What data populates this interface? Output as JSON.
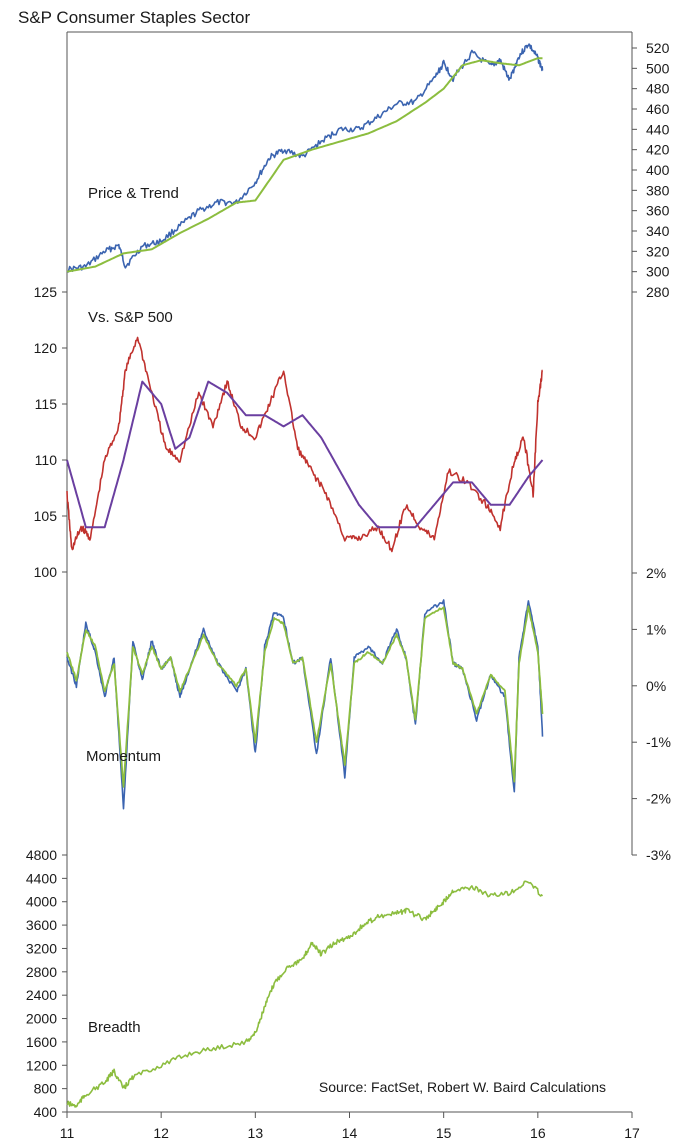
{
  "figure": {
    "title": "S&P Consumer Staples Sector",
    "source": "Source: FactSet, Robert W. Baird Calculations"
  },
  "chart_data": [
    {
      "type": "line",
      "panel": "price",
      "label": "Price & Trend",
      "y_axis_side": "right",
      "ylim": [
        280,
        530
      ],
      "yticks": [
        280,
        300,
        320,
        340,
        360,
        380,
        400,
        420,
        440,
        460,
        480,
        500,
        520
      ],
      "series": [
        {
          "role": "price",
          "color": "#3b64b0",
          "x": [
            11.0,
            11.2,
            11.4,
            11.55,
            11.62,
            11.8,
            12.0,
            12.2,
            12.4,
            12.6,
            12.8,
            13.0,
            13.15,
            13.3,
            13.5,
            13.7,
            13.9,
            14.1,
            14.3,
            14.5,
            14.7,
            14.9,
            15.0,
            15.1,
            15.3,
            15.5,
            15.6,
            15.7,
            15.8,
            15.9,
            16.0,
            16.05
          ],
          "y": [
            302,
            305,
            320,
            326,
            305,
            325,
            330,
            345,
            360,
            368,
            368,
            388,
            412,
            420,
            413,
            428,
            440,
            440,
            452,
            465,
            467,
            490,
            505,
            490,
            515,
            502,
            508,
            488,
            512,
            524,
            510,
            498
          ]
        },
        {
          "role": "trend",
          "color": "#8cbd3f",
          "x": [
            11.0,
            11.3,
            11.6,
            11.9,
            12.2,
            12.5,
            12.8,
            13.0,
            13.3,
            13.6,
            13.9,
            14.2,
            14.5,
            14.8,
            15.0,
            15.2,
            15.4,
            15.6,
            15.8,
            16.0,
            16.05
          ],
          "y": [
            300,
            305,
            318,
            322,
            338,
            352,
            368,
            370,
            410,
            420,
            428,
            436,
            448,
            466,
            480,
            503,
            508,
            505,
            503,
            510,
            510
          ]
        }
      ]
    },
    {
      "type": "line",
      "panel": "relative",
      "label": "Vs. S&P 500",
      "y_axis_side": "left",
      "ylim": [
        100,
        126
      ],
      "yticks": [
        100,
        105,
        110,
        115,
        120,
        125
      ],
      "series": [
        {
          "role": "relative",
          "color": "#c0322e",
          "x": [
            11.0,
            11.05,
            11.15,
            11.25,
            11.4,
            11.55,
            11.62,
            11.75,
            11.9,
            12.05,
            12.2,
            12.4,
            12.55,
            12.7,
            12.85,
            13.0,
            13.15,
            13.3,
            13.45,
            13.6,
            13.75,
            13.95,
            14.1,
            14.3,
            14.45,
            14.6,
            14.75,
            14.9,
            15.05,
            15.25,
            15.45,
            15.6,
            15.75,
            15.85,
            15.95,
            16.0,
            16.05
          ],
          "y": [
            107,
            102,
            104,
            103,
            110,
            113,
            118,
            121,
            116,
            111,
            110,
            116,
            113,
            117,
            113,
            112,
            115,
            118,
            111,
            109,
            107,
            103,
            103,
            104,
            102,
            106,
            104,
            103,
            109,
            108,
            106,
            104,
            110,
            112,
            107,
            115,
            118
          ]
        },
        {
          "role": "average",
          "color": "#6a3fa0",
          "x": [
            11.0,
            11.2,
            11.4,
            11.6,
            11.8,
            12.0,
            12.15,
            12.3,
            12.5,
            12.7,
            12.9,
            13.1,
            13.3,
            13.5,
            13.7,
            13.9,
            14.1,
            14.3,
            14.5,
            14.7,
            14.9,
            15.1,
            15.3,
            15.5,
            15.7,
            15.9,
            16.05
          ],
          "y": [
            110,
            104,
            104,
            110,
            117,
            115,
            111,
            112,
            117,
            116,
            114,
            114,
            113,
            114,
            112,
            109,
            106,
            104,
            104,
            104,
            106,
            108,
            108,
            106,
            106,
            108.5,
            110
          ]
        }
      ]
    },
    {
      "type": "line",
      "panel": "momentum",
      "label": "Momentum",
      "y_axis_side": "right",
      "ylim": [
        -3,
        2
      ],
      "yticks": [
        -3,
        -2,
        -1,
        0,
        1,
        2
      ],
      "tick_suffix": "%",
      "series": [
        {
          "role": "momentum",
          "color": "#3b64b0",
          "x": [
            11.0,
            11.1,
            11.2,
            11.3,
            11.4,
            11.5,
            11.6,
            11.7,
            11.8,
            11.9,
            12.0,
            12.1,
            12.2,
            12.3,
            12.45,
            12.6,
            12.8,
            12.9,
            13.0,
            13.1,
            13.2,
            13.3,
            13.4,
            13.5,
            13.65,
            13.8,
            13.95,
            14.05,
            14.2,
            14.35,
            14.5,
            14.6,
            14.7,
            14.8,
            15.0,
            15.1,
            15.2,
            15.35,
            15.5,
            15.65,
            15.75,
            15.8,
            15.9,
            16.0,
            16.05
          ],
          "y": [
            0.5,
            0,
            1.1,
            0.6,
            -0.2,
            0.5,
            -2.2,
            0.8,
            0.1,
            0.8,
            0.3,
            0.5,
            -0.2,
            0.3,
            1.0,
            0.4,
            -0.1,
            0.3,
            -1.2,
            0.7,
            1.3,
            1.2,
            0.4,
            0.5,
            -1.2,
            0.5,
            -1.6,
            0.5,
            0.7,
            0.4,
            1.0,
            0.5,
            -0.7,
            1.3,
            1.5,
            0.4,
            0.3,
            -0.6,
            0.2,
            -0.2,
            -1.9,
            0.5,
            1.5,
            0.7,
            -0.9
          ]
        },
        {
          "role": "momentum-smoothed",
          "color": "#8cbd3f",
          "x": [
            11.0,
            11.1,
            11.2,
            11.3,
            11.4,
            11.5,
            11.6,
            11.7,
            11.8,
            11.9,
            12.0,
            12.1,
            12.2,
            12.3,
            12.45,
            12.6,
            12.8,
            12.9,
            13.0,
            13.1,
            13.2,
            13.3,
            13.4,
            13.5,
            13.65,
            13.8,
            13.95,
            14.05,
            14.2,
            14.35,
            14.5,
            14.6,
            14.7,
            14.8,
            15.0,
            15.1,
            15.2,
            15.35,
            15.5,
            15.65,
            15.75,
            15.8,
            15.9,
            16.0,
            16.05
          ],
          "y": [
            0.6,
            0.1,
            1.0,
            0.7,
            -0.1,
            0.4,
            -1.8,
            0.7,
            0.2,
            0.7,
            0.3,
            0.5,
            -0.1,
            0.3,
            0.9,
            0.4,
            0,
            0.3,
            -1.0,
            0.6,
            1.2,
            1.1,
            0.4,
            0.5,
            -1.0,
            0.4,
            -1.4,
            0.4,
            0.6,
            0.4,
            0.9,
            0.5,
            -0.6,
            1.2,
            1.4,
            0.4,
            0.3,
            -0.5,
            0.2,
            -0.1,
            -1.7,
            0.4,
            1.4,
            0.6,
            -0.5
          ]
        }
      ]
    },
    {
      "type": "line",
      "panel": "breadth",
      "label": "Breadth",
      "y_axis_side": "left",
      "ylim": [
        400,
        4800
      ],
      "yticks": [
        400,
        800,
        1200,
        1600,
        2000,
        2400,
        2800,
        3200,
        3600,
        4000,
        4400,
        4800
      ],
      "series": [
        {
          "role": "breadth",
          "color": "#8cbd3f",
          "x": [
            11.0,
            11.1,
            11.2,
            11.4,
            11.5,
            11.6,
            11.7,
            12.0,
            12.3,
            12.6,
            12.9,
            13.0,
            13.1,
            13.2,
            13.35,
            13.5,
            13.6,
            13.7,
            13.85,
            14.0,
            14.15,
            14.3,
            14.5,
            14.6,
            14.8,
            14.9,
            15.0,
            15.1,
            15.3,
            15.5,
            15.7,
            15.9,
            16.05
          ],
          "y": [
            550,
            500,
            700,
            900,
            1100,
            800,
            1000,
            1200,
            1400,
            1500,
            1600,
            1750,
            2200,
            2600,
            2900,
            3000,
            3300,
            3100,
            3300,
            3400,
            3600,
            3750,
            3800,
            3850,
            3700,
            3850,
            4000,
            4200,
            4250,
            4100,
            4150,
            4350,
            4100
          ]
        }
      ]
    }
  ],
  "x_axis": {
    "ticks": [
      11,
      12,
      13,
      14,
      15,
      16,
      17
    ],
    "xlim": [
      11,
      17
    ]
  }
}
